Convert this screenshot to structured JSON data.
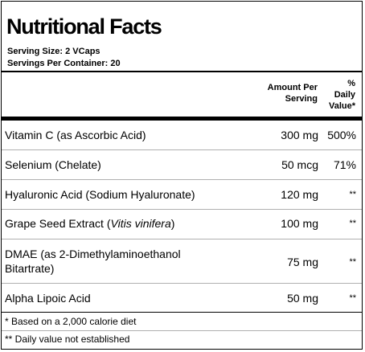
{
  "title": "Nutritional Facts",
  "serving_size": "Serving Size:  2 VCaps",
  "servings_per_container": "Servings Per Container:  20",
  "columns": {
    "amount_line1": "Amount Per",
    "amount_line2": "Serving",
    "dv_line1": "%",
    "dv_line2": "Daily",
    "dv_line3": "Value*"
  },
  "rows": [
    {
      "name": "Vitamin C (as Ascorbic Acid)",
      "amount": "300 mg",
      "dv": "500%"
    },
    {
      "name": "Selenium (Chelate)",
      "amount": "50 mcg",
      "dv": "71%"
    },
    {
      "name": "Hyaluronic Acid (Sodium Hyaluronate)",
      "amount": "120 mg",
      "dv": "**"
    },
    {
      "name_prefix": "Grape Seed Extract (",
      "name_italic": "Vitis vinifera",
      "name_suffix": ")",
      "amount": "100 mg",
      "dv": "**"
    },
    {
      "name_line1": "DMAE (as 2-Dimethylaminoethanol",
      "name_line2": "Bitartrate)",
      "amount": "75 mg",
      "dv": "**"
    },
    {
      "name": "Alpha Lipoic Acid",
      "amount": "50 mg",
      "dv": "**"
    }
  ],
  "footnotes": [
    "* Based on a 2,000 calorie diet",
    "** Daily value not established"
  ]
}
